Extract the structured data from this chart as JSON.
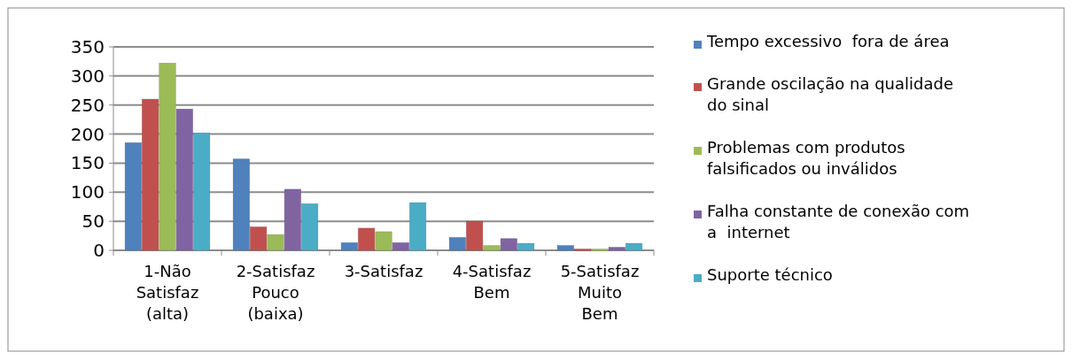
{
  "chart_data": {
    "type": "bar",
    "categories": [
      "1-Não Satisfaz (alta)",
      "2-Satisfaz Pouco (baixa)",
      "3-Satisfaz",
      "4-Satisfaz Bem",
      "5-Satisfaz Muito Bem"
    ],
    "series": [
      {
        "name": "Tempo excessivo  fora de área",
        "color": "#4f81bd",
        "values": [
          185,
          157,
          13,
          22,
          8
        ]
      },
      {
        "name": "Grande oscilação na qualidade do sinal",
        "color": "#c0504d",
        "values": [
          260,
          40,
          38,
          50,
          2
        ]
      },
      {
        "name": "Problemas com produtos falsificados ou inválidos",
        "color": "#9bbb59",
        "values": [
          322,
          27,
          32,
          8,
          2
        ]
      },
      {
        "name": "Falha constante de conexão com a  internet",
        "color": "#8064a2",
        "values": [
          243,
          105,
          13,
          20,
          5
        ]
      },
      {
        "name": "Suporte técnico",
        "color": "#4bacc6",
        "values": [
          202,
          80,
          82,
          12,
          12
        ]
      }
    ],
    "ylim": [
      0,
      350
    ],
    "yticks": [
      0,
      50,
      100,
      150,
      200,
      250,
      300,
      350
    ],
    "grid": "y",
    "legend": "right"
  }
}
